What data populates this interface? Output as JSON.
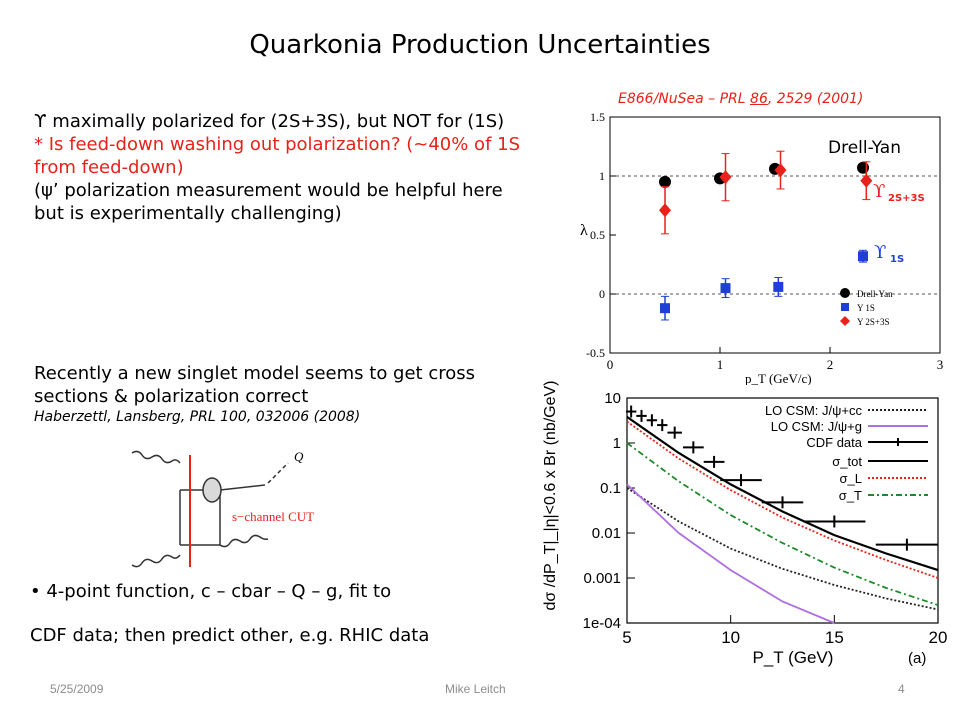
{
  "slide": {
    "title": "Quarkonia Production Uncertainties",
    "para1": {
      "line1": "ϒ maximally polarized for (2S+3S), but NOT for (1S)",
      "line2": "* Is feed-down washing out polarization? (~40% of 1S from feed-down)",
      "line3": "(ψ’ polarization measurement would be helpful here but is experimentally challenging)"
    },
    "para2": {
      "text": "Recently a new singlet model seems to get cross sections & polarization correct",
      "citation": "Haberzettl, Lansberg, PRL 100, 032006 (2008)"
    },
    "bullet": {
      "line1": "4-point function, c – cbar – Q – g, fit to",
      "line2": "CDF data; then predict other, e.g. RHIC data"
    },
    "reference": {
      "prefix": "E866/NuSea – PRL ",
      "volume": "86",
      "suffix": ", 2529 (2001)"
    },
    "footer": {
      "date": "5/25/2009",
      "author": "Mike Leitch",
      "page": "4"
    }
  },
  "diagram": {
    "label_q": "Q",
    "label_cut": "s−channel CUT"
  },
  "chart_data": [
    {
      "type": "scatter",
      "title": "",
      "xlabel": "p_T (GeV/c)",
      "ylabel": "λ",
      "xlim": [
        0,
        3
      ],
      "ylim": [
        -0.5,
        1.5
      ],
      "x_ticks": [
        "0",
        "1",
        "2",
        "3"
      ],
      "y_ticks": [
        "-0.5",
        "0",
        "0.5",
        "1",
        "1.5"
      ],
      "annotations": {
        "drell_yan": "Drell-Yan",
        "upsilon_2s3s": "ϒ",
        "upsilon_2s3s_sub": "2S+3S",
        "upsilon_1s": "ϒ",
        "upsilon_1s_sub": "1S"
      },
      "legend": [
        "Drell-Yan",
        "Υ 1S",
        "Υ 2S+3S"
      ],
      "legend_position": "bottom-right",
      "series": [
        {
          "name": "Drell-Yan",
          "color": "#000000",
          "marker": "circle",
          "x": [
            0.5,
            1.0,
            1.5,
            2.3
          ],
          "y": [
            0.95,
            0.98,
            1.06,
            1.07
          ],
          "err": [
            0.02,
            0.02,
            0.02,
            0.02
          ]
        },
        {
          "name": "Υ 1S",
          "color": "#1f3fd8",
          "marker": "square",
          "x": [
            0.5,
            1.05,
            1.53,
            2.3
          ],
          "y": [
            -0.12,
            0.05,
            0.06,
            0.32
          ],
          "err": [
            0.1,
            0.08,
            0.08,
            0.05
          ]
        },
        {
          "name": "Υ 2S+3S",
          "color": "#e8211b",
          "marker": "diamond",
          "x": [
            0.5,
            1.05,
            1.55,
            2.33
          ],
          "y": [
            0.71,
            0.99,
            1.05,
            0.96
          ],
          "err": [
            0.2,
            0.2,
            0.16,
            0.16
          ]
        }
      ]
    },
    {
      "type": "line",
      "title": "",
      "xlabel": "P_T (GeV)",
      "ylabel": "dσ /dP_T|_|η|<0.6 x Br  (nb/GeV)",
      "panel_label": "(a)",
      "xlim": [
        5,
        20
      ],
      "ylim_log10": [
        -4,
        1
      ],
      "x_ticks": [
        "5",
        "10",
        "15",
        "20"
      ],
      "y_ticks": [
        "1e-04",
        "0.001",
        "0.01",
        "0.1",
        "1",
        "10"
      ],
      "legend_position": "top-right",
      "series": [
        {
          "name": "LO CSM: J/ψ+cc",
          "color": "#222222",
          "style": "dotted",
          "x": [
            5,
            7.5,
            10,
            12.5,
            15,
            17.5,
            20
          ],
          "y": [
            0.1,
            0.018,
            0.0045,
            0.0016,
            0.0007,
            0.00035,
            0.0002
          ]
        },
        {
          "name": "LO CSM: J/ψ+g",
          "color": "#b06fe0",
          "style": "solid",
          "x": [
            5,
            7.5,
            10,
            12.5,
            15
          ],
          "y": [
            0.12,
            0.01,
            0.0015,
            0.0003,
            0.0001
          ]
        },
        {
          "name": "CDF data",
          "color": "#000000",
          "style": "points",
          "x": [
            5.2,
            5.7,
            6.2,
            6.7,
            7.3,
            8.2,
            9.2,
            10.5,
            12.5,
            15,
            18.5
          ],
          "y": [
            5,
            4,
            3.2,
            2.5,
            1.7,
            0.8,
            0.38,
            0.15,
            0.048,
            0.018,
            0.0055
          ],
          "xerr": [
            0.25,
            0.25,
            0.25,
            0.25,
            0.35,
            0.5,
            0.5,
            1.0,
            1.0,
            1.5,
            1.5
          ]
        },
        {
          "name": "σ_tot",
          "color": "#000000",
          "style": "solid",
          "x": [
            5,
            7.5,
            10,
            12.5,
            15,
            17.5,
            20
          ],
          "y": [
            3.8,
            0.6,
            0.12,
            0.03,
            0.009,
            0.0035,
            0.0015
          ]
        },
        {
          "name": "σ_L",
          "color": "#e8211b",
          "style": "dotted",
          "x": [
            5,
            7.5,
            10,
            12.5,
            15,
            17.5,
            20
          ],
          "y": [
            3.0,
            0.45,
            0.09,
            0.022,
            0.0068,
            0.0025,
            0.001
          ]
        },
        {
          "name": "σ_T",
          "color": "#1d8a2a",
          "style": "dashdot",
          "x": [
            5,
            7.5,
            10,
            12.5,
            15,
            17.5,
            20
          ],
          "y": [
            1.0,
            0.14,
            0.025,
            0.006,
            0.0017,
            0.0006,
            0.00025
          ]
        }
      ]
    }
  ]
}
